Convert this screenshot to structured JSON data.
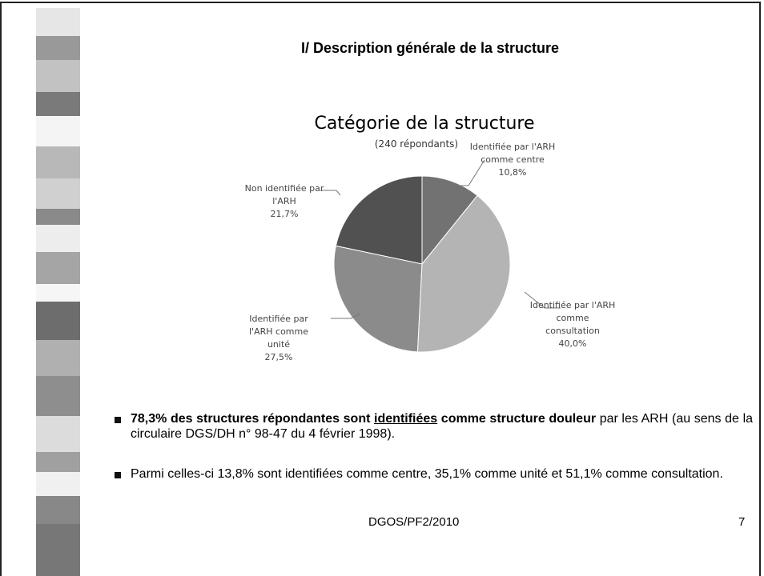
{
  "slide": {
    "title": "I/ Description générale de la structure",
    "bullets": [
      [
        "78,3% des structures répondantes sont ",
        "identifiées",
        " comme structure douleur",
        " par les ARH (au sens de la circulaire DGS/DH n° 98-47 du 4 février 1998)."
      ],
      [
        "Parmi celles-ci 13,8% sont identifiées comme centre, 35,1% comme unité et 51,1% comme consultation."
      ]
    ],
    "footer": "DGOS/PF2/2010",
    "page_number": "7"
  },
  "chart_data": {
    "type": "pie",
    "title": "Catégorie de la structure",
    "subtitle": "(240 répondants)",
    "categories": [
      "Identifiée par l'ARH comme centre",
      "Identifiée par l'ARH comme consultation",
      "Identifiée par l'ARH comme unité",
      "Non identifiée par l'ARH"
    ],
    "values": [
      10.8,
      40.0,
      27.5,
      21.7
    ],
    "value_labels": [
      "10,8%",
      "40,0%",
      "27,5%",
      "21,7%"
    ],
    "colors": [
      "#727272",
      "#b4b4b4",
      "#8b8b8b",
      "#515151"
    ]
  }
}
